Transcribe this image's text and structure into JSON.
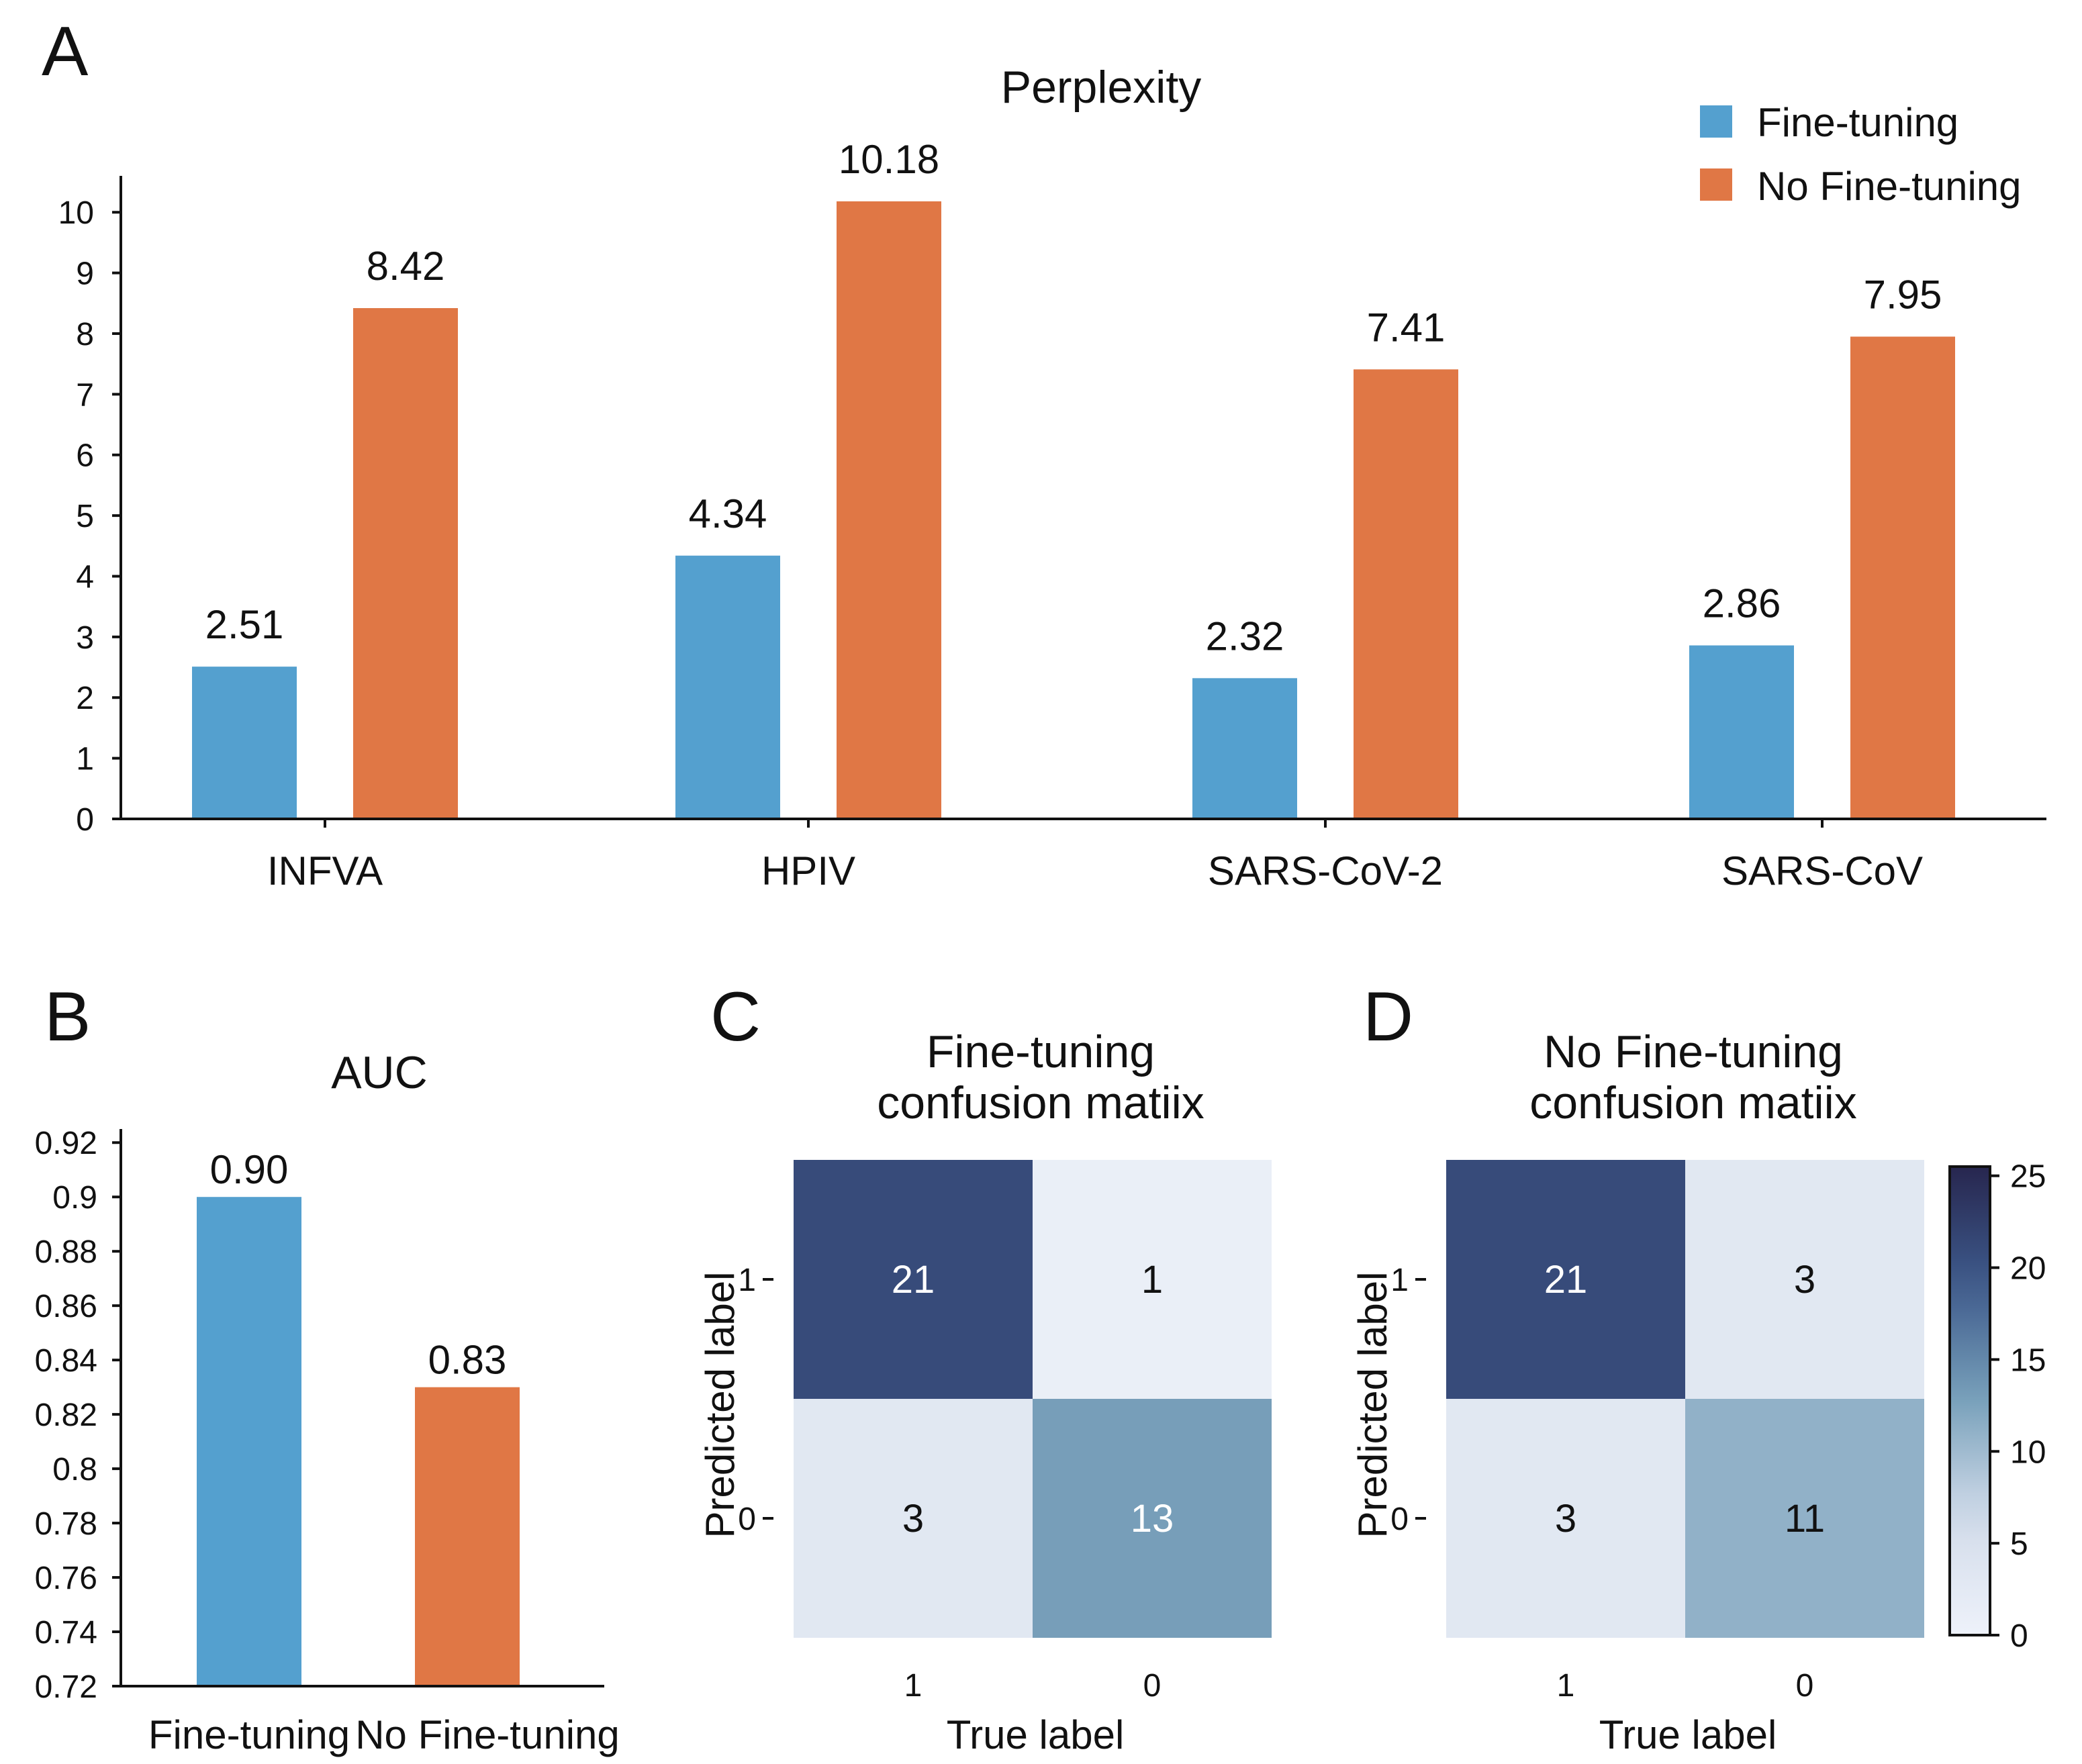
{
  "panels": {
    "A": {
      "letter": "A"
    },
    "B": {
      "letter": "B"
    },
    "C": {
      "letter": "C"
    },
    "D": {
      "letter": "D"
    }
  },
  "colors": {
    "fine_tuning": "#54a0cf",
    "no_fine_tuning": "#e07745",
    "cmap_low": "#eef2fa",
    "cmap_high": "#27264f"
  },
  "chart_data": [
    {
      "id": "A",
      "type": "bar",
      "title": "Perplexity",
      "categories": [
        "INFVA",
        "HPIV",
        "SARS-CoV-2",
        "SARS-CoV"
      ],
      "series": [
        {
          "name": "Fine-tuning",
          "values": [
            2.51,
            4.34,
            2.32,
            2.86
          ],
          "labels": [
            "2.51",
            "4.34",
            "2.32",
            "2.86"
          ]
        },
        {
          "name": "No Fine-tuning",
          "values": [
            8.42,
            10.18,
            7.41,
            7.95
          ],
          "labels": [
            "8.42",
            "10.18",
            "7.41",
            "7.95"
          ]
        }
      ],
      "ylim": [
        0,
        10.6
      ],
      "yticks": [
        0,
        1,
        2,
        3,
        4,
        5,
        6,
        7,
        8,
        9,
        10
      ],
      "legend": "top-right",
      "xlabel": "",
      "ylabel": ""
    },
    {
      "id": "B",
      "type": "bar",
      "title": "AUC",
      "categories": [
        "Fine-tuning",
        "No Fine-tuning"
      ],
      "values": [
        0.9,
        0.83
      ],
      "labels": [
        "0.90",
        "0.83"
      ],
      "ylim": [
        0.72,
        0.925
      ],
      "yticks": [
        "0.72",
        "0.74",
        "0.76",
        "0.78",
        "0.8",
        "0.82",
        "0.84",
        "0.86",
        "0.88",
        "0.9",
        "0.92"
      ],
      "xlabel": "",
      "ylabel": ""
    },
    {
      "id": "C",
      "type": "heatmap",
      "title": [
        "Fine-tuning",
        "confusion matiix"
      ],
      "xlabel": "True label",
      "ylabel": "Predicted label",
      "x_ticks": [
        "1",
        "0"
      ],
      "y_ticks": [
        "1",
        "0"
      ],
      "matrix": [
        [
          21,
          1
        ],
        [
          3,
          13
        ]
      ]
    },
    {
      "id": "D",
      "type": "heatmap",
      "title": [
        "No Fine-tuning",
        "confusion matiix"
      ],
      "xlabel": "True label",
      "ylabel": "Predicted label",
      "x_ticks": [
        "1",
        "0"
      ],
      "y_ticks": [
        "1",
        "0"
      ],
      "matrix": [
        [
          21,
          3
        ],
        [
          3,
          11
        ]
      ],
      "colorbar": {
        "range": [
          0,
          25.5
        ],
        "ticks": [
          0,
          5,
          10,
          15,
          20,
          25
        ]
      }
    }
  ]
}
